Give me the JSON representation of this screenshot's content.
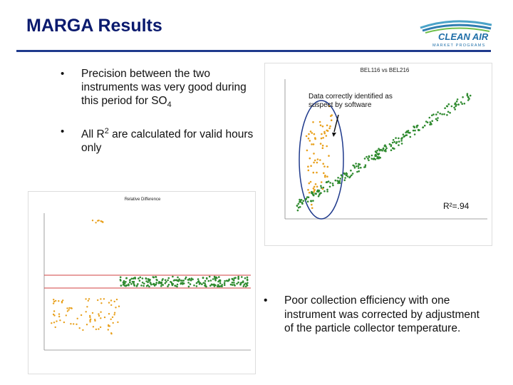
{
  "slide": {
    "title": "MARGA Results",
    "bullets": [
      {
        "text_html": "Precision between the two instruments was very good during this period for SO<sub>4</sub>"
      },
      {
        "text_html": "All R<sup>2</sup> are calculated for valid hours only"
      }
    ],
    "bullet_bottom": "Poor collection efficiency with one instrument was corrected by adjustment of the particle collector temperature.",
    "bullet_char": "•"
  },
  "logo": {
    "line1": "CLEAN AIR",
    "line2": "MARKET PROGRAMS"
  },
  "scatter_chart": {
    "title": "BEL116  vs  BEL216",
    "callout": "Data correctly identified as suspect by software",
    "r2_label": "R²=.94",
    "colors": {
      "suspect": "#e8a01c",
      "valid": "#2f8a2f"
    }
  },
  "diff_chart": {
    "title": "Relative Difference",
    "colors": {
      "suspect": "#e8a01c",
      "valid": "#2f8a2f",
      "limit_line": "#d04040"
    }
  }
}
